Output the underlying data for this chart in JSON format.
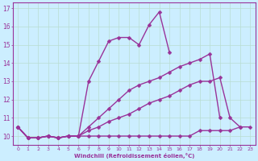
{
  "xlabel": "Windchill (Refroidissement éolien,°C)",
  "bg_color": "#cceeff",
  "line_color": "#993399",
  "grid_color": "#b8ddd0",
  "series": [
    {
      "x": [
        0,
        1,
        2,
        3,
        4,
        5,
        6,
        7,
        8,
        9,
        10,
        11,
        12,
        13,
        14,
        15,
        16,
        17,
        18,
        19
      ],
      "y": [
        10.5,
        9.9,
        9.9,
        10.0,
        9.9,
        10.0,
        10.0,
        13.0,
        14.1,
        15.2,
        15.4,
        15.4,
        15.0,
        16.1,
        16.8,
        14.6,
        null,
        null,
        null,
        null
      ]
    },
    {
      "x": [
        0,
        1,
        2,
        3,
        4,
        5,
        6,
        7,
        8,
        9,
        10,
        11,
        12,
        13,
        14,
        15,
        16,
        17,
        18,
        19,
        20,
        21,
        22,
        23
      ],
      "y": [
        10.5,
        9.9,
        9.9,
        10.0,
        9.9,
        10.0,
        10.0,
        10.5,
        11.0,
        11.5,
        12.0,
        12.5,
        12.8,
        13.0,
        13.2,
        13.5,
        13.8,
        14.0,
        14.2,
        14.5,
        11.0,
        null,
        null,
        null
      ]
    },
    {
      "x": [
        0,
        1,
        2,
        3,
        4,
        5,
        6,
        7,
        8,
        9,
        10,
        11,
        12,
        13,
        14,
        15,
        16,
        17,
        18,
        19,
        20,
        21,
        22,
        23
      ],
      "y": [
        10.5,
        9.9,
        9.9,
        10.0,
        9.9,
        10.0,
        10.0,
        10.3,
        10.5,
        10.8,
        11.0,
        11.2,
        11.5,
        11.8,
        12.0,
        12.2,
        12.5,
        12.8,
        13.0,
        13.0,
        13.2,
        11.0,
        10.5,
        null
      ]
    },
    {
      "x": [
        0,
        1,
        2,
        3,
        4,
        5,
        6,
        7,
        8,
        9,
        10,
        11,
        12,
        13,
        14,
        15,
        16,
        17,
        18,
        19,
        20,
        21,
        22,
        23
      ],
      "y": [
        10.5,
        9.9,
        9.9,
        10.0,
        9.9,
        10.0,
        10.0,
        10.0,
        10.0,
        10.0,
        10.0,
        10.0,
        10.0,
        10.0,
        10.0,
        10.0,
        10.0,
        10.0,
        10.3,
        10.3,
        10.3,
        10.3,
        10.5,
        10.5
      ]
    }
  ],
  "xlim": [
    -0.5,
    23.5
  ],
  "ylim": [
    9.5,
    17.3
  ],
  "yticks": [
    10,
    11,
    12,
    13,
    14,
    15,
    16,
    17
  ],
  "xticks": [
    0,
    1,
    2,
    3,
    4,
    5,
    6,
    7,
    8,
    9,
    10,
    11,
    12,
    13,
    14,
    15,
    16,
    17,
    18,
    19,
    20,
    21,
    22,
    23
  ],
  "markersize": 2.5,
  "linewidth": 1.0
}
